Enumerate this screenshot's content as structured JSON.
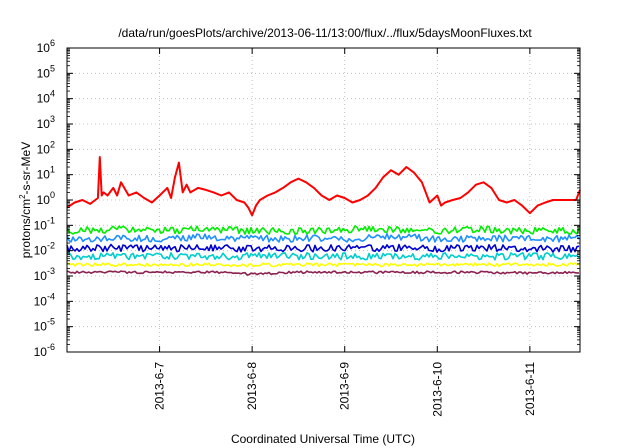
{
  "chart_data": {
    "type": "line",
    "title": "/data/run/goesPlots/archive/2013-06-11/13:00/flux/../flux/5daysMoonFluxes.txt",
    "xlabel": "Coordinated Universal Time (UTC)",
    "ylabel_parts": {
      "prefix": "protons/cm",
      "superscript": "2",
      "suffix": "-s-sr-MeV"
    },
    "y_scale": "log",
    "ylim": [
      1e-06,
      1000000.0
    ],
    "y_tick_labels": [
      {
        "value": 1e-06,
        "base": "10",
        "exp": "-6"
      },
      {
        "value": 1e-05,
        "base": "10",
        "exp": "-5"
      },
      {
        "value": 0.0001,
        "base": "10",
        "exp": "-4"
      },
      {
        "value": 0.001,
        "base": "10",
        "exp": "-3"
      },
      {
        "value": 0.01,
        "base": "10",
        "exp": "-2"
      },
      {
        "value": 0.1,
        "base": "10",
        "exp": "-1"
      },
      {
        "value": 1,
        "base": "10",
        "exp": "0"
      },
      {
        "value": 10.0,
        "base": "10",
        "exp": "1"
      },
      {
        "value": 100.0,
        "base": "10",
        "exp": "2"
      },
      {
        "value": 1000.0,
        "base": "10",
        "exp": "3"
      },
      {
        "value": 10000.0,
        "base": "10",
        "exp": "4"
      },
      {
        "value": 100000.0,
        "base": "10",
        "exp": "5"
      },
      {
        "value": 1000000.0,
        "base": "10",
        "exp": "6"
      }
    ],
    "xlim": [
      "2013-06-06 00:00",
      "2013-06-11 13:00"
    ],
    "x_ticks": [
      {
        "value": "2013-06-07 00:00",
        "label": "2013-6-7"
      },
      {
        "value": "2013-06-08 00:00",
        "label": "2013-6-8"
      },
      {
        "value": "2013-06-09 00:00",
        "label": "2013-6-9"
      },
      {
        "value": "2013-06-10 00:00",
        "label": "2013-6-10"
      },
      {
        "value": "2013-06-11 00:00",
        "label": "2013-6-11"
      }
    ],
    "grid": true,
    "series": [
      {
        "color": "#ff0000",
        "x": [
          "2013-06-06 00:00",
          "2013-06-06 02:00",
          "2013-06-06 04:00",
          "2013-06-06 06:00",
          "2013-06-06 08:00",
          "2013-06-06 08:30",
          "2013-06-06 09:00",
          "2013-06-06 09:30",
          "2013-06-06 10:30",
          "2013-06-06 12:00",
          "2013-06-06 13:00",
          "2013-06-06 14:00",
          "2013-06-06 16:00",
          "2013-06-06 18:00",
          "2013-06-06 20:00",
          "2013-06-06 22:00",
          "2013-06-07 00:00",
          "2013-06-07 02:00",
          "2013-06-07 03:00",
          "2013-06-07 04:00",
          "2013-06-07 05:00",
          "2013-06-07 06:00",
          "2013-06-07 07:00",
          "2013-06-07 08:00",
          "2013-06-07 10:00",
          "2013-06-07 12:00",
          "2013-06-07 14:00",
          "2013-06-07 16:00",
          "2013-06-07 18:00",
          "2013-06-07 20:00",
          "2013-06-07 22:00",
          "2013-06-07 23:00",
          "2013-06-08 00:00",
          "2013-06-08 01:00",
          "2013-06-08 02:00",
          "2013-06-08 04:00",
          "2013-06-08 06:00",
          "2013-06-08 08:00",
          "2013-06-08 10:00",
          "2013-06-08 12:00",
          "2013-06-08 14:00",
          "2013-06-08 16:00",
          "2013-06-08 18:00",
          "2013-06-08 20:00",
          "2013-06-08 22:00",
          "2013-06-09 00:00",
          "2013-06-09 02:00",
          "2013-06-09 04:00",
          "2013-06-09 06:00",
          "2013-06-09 08:00",
          "2013-06-09 10:00",
          "2013-06-09 12:00",
          "2013-06-09 14:00",
          "2013-06-09 16:00",
          "2013-06-09 18:00",
          "2013-06-09 20:00",
          "2013-06-09 22:00",
          "2013-06-10 00:00",
          "2013-06-10 01:00",
          "2013-06-10 02:00",
          "2013-06-10 04:00",
          "2013-06-10 06:00",
          "2013-06-10 08:00",
          "2013-06-10 10:00",
          "2013-06-10 12:00",
          "2013-06-10 14:00",
          "2013-06-10 16:00",
          "2013-06-10 18:00",
          "2013-06-10 20:00",
          "2013-06-10 22:00",
          "2013-06-11 00:00",
          "2013-06-11 02:00",
          "2013-06-11 04:00",
          "2013-06-11 06:00",
          "2013-06-11 08:00",
          "2013-06-11 10:00",
          "2013-06-11 12:00",
          "2013-06-11 13:00"
        ],
        "y": [
          0.5,
          0.8,
          1.0,
          0.7,
          1.2,
          50,
          1.5,
          2.0,
          1.5,
          3.0,
          1.5,
          5.0,
          1.5,
          2.0,
          1.2,
          0.8,
          1.5,
          3.0,
          1.2,
          8.0,
          30,
          2.0,
          4.0,
          2.0,
          3.0,
          2.5,
          2.0,
          1.5,
          2.0,
          1.0,
          0.8,
          0.5,
          0.25,
          0.6,
          1.0,
          1.5,
          2.0,
          3.0,
          5.0,
          7.0,
          5.0,
          3.0,
          1.5,
          1.0,
          1.5,
          1.2,
          0.8,
          1.0,
          1.5,
          3.0,
          8.0,
          15,
          10,
          20,
          12,
          5.0,
          0.8,
          1.5,
          0.6,
          0.8,
          1.0,
          1.2,
          2.0,
          4.0,
          5.0,
          3.0,
          1.0,
          0.8,
          1.0,
          0.6,
          0.3,
          0.6,
          0.8,
          1.0,
          1.0,
          1.0,
          1.0,
          2.5
        ]
      },
      {
        "color": "#00ee00",
        "x": [
          "2013-06-06 00:00",
          "2013-06-06 12:00",
          "2013-06-07 00:00",
          "2013-06-07 12:00",
          "2013-06-08 00:00",
          "2013-06-08 12:00",
          "2013-06-09 00:00",
          "2013-06-09 12:00",
          "2013-06-10 00:00",
          "2013-06-10 12:00",
          "2013-06-11 00:00",
          "2013-06-11 13:00"
        ],
        "y": [
          0.06,
          0.07,
          0.06,
          0.07,
          0.06,
          0.06,
          0.07,
          0.07,
          0.06,
          0.07,
          0.06,
          0.06
        ]
      },
      {
        "color": "#1e90ff",
        "x": [
          "2013-06-06 00:00",
          "2013-06-06 12:00",
          "2013-06-07 00:00",
          "2013-06-07 12:00",
          "2013-06-08 00:00",
          "2013-06-08 12:00",
          "2013-06-09 00:00",
          "2013-06-09 12:00",
          "2013-06-10 00:00",
          "2013-06-10 12:00",
          "2013-06-11 00:00",
          "2013-06-11 13:00"
        ],
        "y": [
          0.03,
          0.03,
          0.03,
          0.035,
          0.03,
          0.03,
          0.03,
          0.035,
          0.03,
          0.03,
          0.03,
          0.03
        ]
      },
      {
        "color": "#0000cc",
        "x": [
          "2013-06-06 00:00",
          "2013-06-06 12:00",
          "2013-06-07 00:00",
          "2013-06-07 12:00",
          "2013-06-08 00:00",
          "2013-06-08 12:00",
          "2013-06-09 00:00",
          "2013-06-09 12:00",
          "2013-06-10 00:00",
          "2013-06-10 12:00",
          "2013-06-11 00:00",
          "2013-06-11 13:00"
        ],
        "y": [
          0.012,
          0.013,
          0.012,
          0.013,
          0.012,
          0.012,
          0.013,
          0.013,
          0.012,
          0.013,
          0.012,
          0.012
        ]
      },
      {
        "color": "#00cdcd",
        "x": [
          "2013-06-06 00:00",
          "2013-06-06 12:00",
          "2013-06-07 00:00",
          "2013-06-07 12:00",
          "2013-06-08 00:00",
          "2013-06-08 12:00",
          "2013-06-09 00:00",
          "2013-06-09 12:00",
          "2013-06-10 00:00",
          "2013-06-10 12:00",
          "2013-06-11 00:00",
          "2013-06-11 13:00"
        ],
        "y": [
          0.006,
          0.006,
          0.006,
          0.006,
          0.006,
          0.006,
          0.006,
          0.006,
          0.006,
          0.006,
          0.006,
          0.006
        ]
      },
      {
        "color": "#ffff00",
        "x": [
          "2013-06-06 00:00",
          "2013-06-06 12:00",
          "2013-06-07 00:00",
          "2013-06-07 12:00",
          "2013-06-08 00:00",
          "2013-06-08 12:00",
          "2013-06-09 00:00",
          "2013-06-09 12:00",
          "2013-06-10 00:00",
          "2013-06-10 12:00",
          "2013-06-11 00:00",
          "2013-06-11 13:00"
        ],
        "y": [
          0.0028,
          0.0028,
          0.0028,
          0.0028,
          0.0027,
          0.0028,
          0.0028,
          0.0028,
          0.0028,
          0.0028,
          0.0028,
          0.0028
        ]
      },
      {
        "color": "#8b2252",
        "x": [
          "2013-06-06 00:00",
          "2013-06-06 12:00",
          "2013-06-07 00:00",
          "2013-06-07 12:00",
          "2013-06-08 00:00",
          "2013-06-08 12:00",
          "2013-06-09 00:00",
          "2013-06-09 12:00",
          "2013-06-10 00:00",
          "2013-06-10 12:00",
          "2013-06-11 00:00",
          "2013-06-11 13:00"
        ],
        "y": [
          0.0014,
          0.0014,
          0.0014,
          0.0014,
          0.0012,
          0.0014,
          0.0014,
          0.0014,
          0.0014,
          0.0014,
          0.0013,
          0.0014
        ]
      }
    ]
  }
}
